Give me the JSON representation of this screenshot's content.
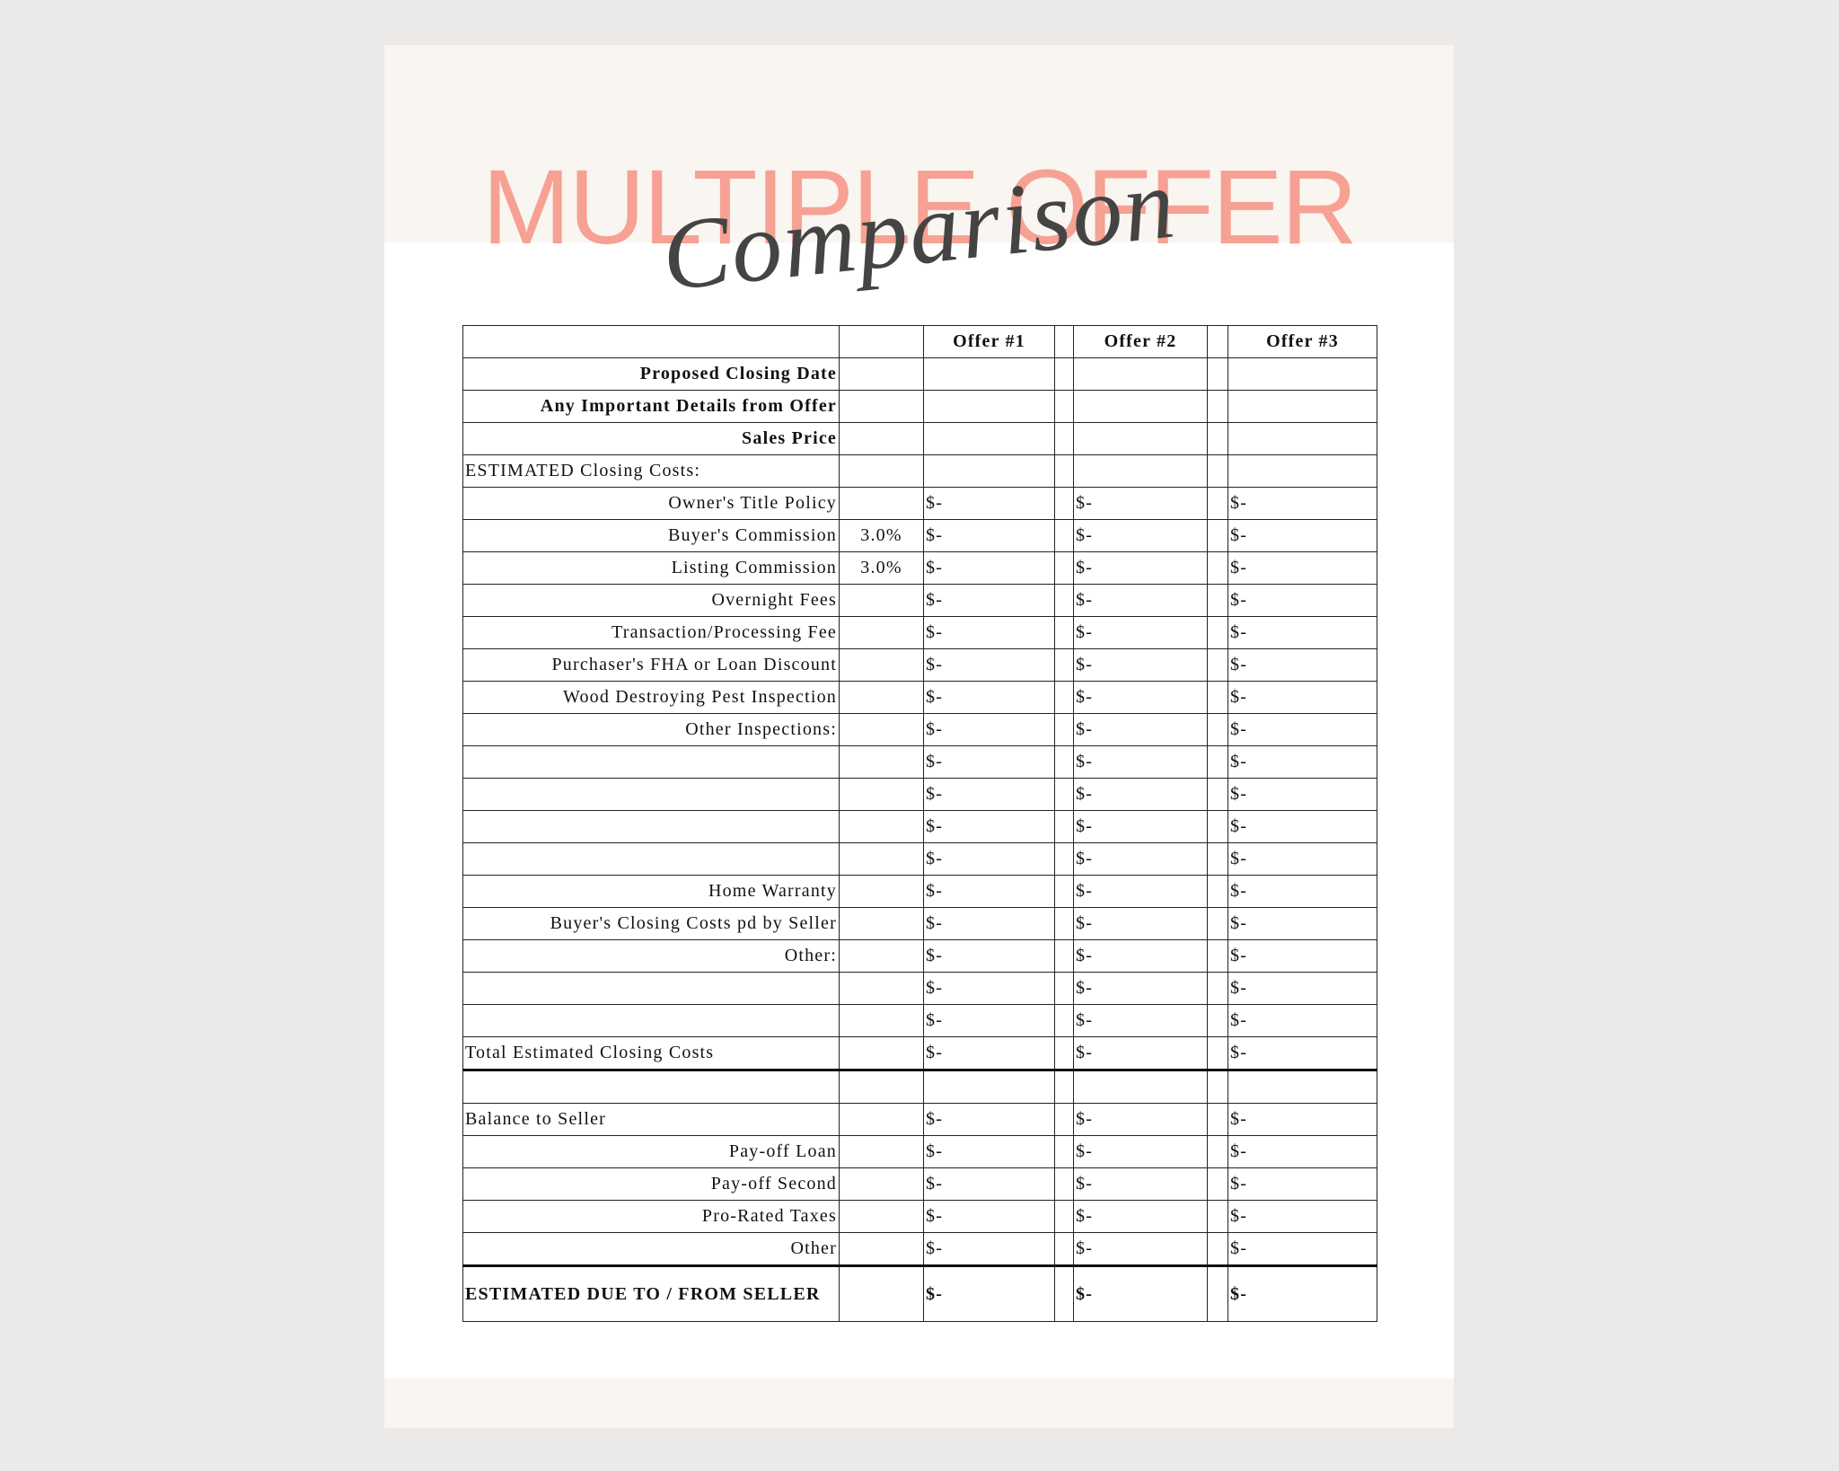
{
  "title": "MULTIPLE OFFER",
  "subtitle": "Comparison",
  "table": {
    "header": [
      "Offer #1",
      "Offer #2",
      "Offer #3"
    ],
    "rows": [
      {
        "label": "Proposed Closing Date"
      },
      {
        "label": "Any Important Details from Offer"
      },
      {
        "label": "Sales Price"
      },
      {
        "label": "ESTIMATED Closing Costs:"
      },
      {
        "label": "Owner's Title Policy",
        "offers": [
          "$-",
          "$-",
          "$-"
        ]
      },
      {
        "label": "Buyer's Commission",
        "rate": "3.0%",
        "offers": [
          "$-",
          "$-",
          "$-"
        ]
      },
      {
        "label": "Listing Commission",
        "rate": "3.0%",
        "offers": [
          "$-",
          "$-",
          "$-"
        ]
      },
      {
        "label": "Overnight Fees",
        "offers": [
          "$-",
          "$-",
          "$-"
        ]
      },
      {
        "label": "Transaction/Processing Fee",
        "offers": [
          "$-",
          "$-",
          "$-"
        ]
      },
      {
        "label": "Purchaser's FHA or Loan Discount",
        "offers": [
          "$-",
          "$-",
          "$-"
        ]
      },
      {
        "label": "Wood Destroying Pest Inspection",
        "offers": [
          "$-",
          "$-",
          "$-"
        ]
      },
      {
        "label": "Other Inspections:",
        "offers": [
          "$-",
          "$-",
          "$-"
        ]
      },
      {
        "offers": [
          "$-",
          "$-",
          "$-"
        ]
      },
      {
        "offers": [
          "$-",
          "$-",
          "$-"
        ]
      },
      {
        "offers": [
          "$-",
          "$-",
          "$-"
        ]
      },
      {
        "offers": [
          "$-",
          "$-",
          "$-"
        ]
      },
      {
        "label": "Home Warranty",
        "offers": [
          "$-",
          "$-",
          "$-"
        ]
      },
      {
        "label": "Buyer's Closing Costs pd by Seller",
        "offers": [
          "$-",
          "$-",
          "$-"
        ]
      },
      {
        "label": "Other:",
        "offers": [
          "$-",
          "$-",
          "$-"
        ]
      },
      {
        "offers": [
          "$-",
          "$-",
          "$-"
        ]
      },
      {
        "offers": [
          "$-",
          "$-",
          "$-"
        ]
      },
      {
        "label": "Total Estimated Closing Costs",
        "offers": [
          "$-",
          "$-",
          "$-"
        ]
      },
      {},
      {
        "label": "Balance to Seller",
        "offers": [
          "$-",
          "$-",
          "$-"
        ]
      },
      {
        "label": "Pay-off Loan",
        "offers": [
          "$-",
          "$-",
          "$-"
        ]
      },
      {
        "label": "Pay-off Second",
        "offers": [
          "$-",
          "$-",
          "$-"
        ]
      },
      {
        "label": "Pro-Rated Taxes",
        "offers": [
          "$-",
          "$-",
          "$-"
        ]
      },
      {
        "label": "Other",
        "offers": [
          "$-",
          "$-",
          "$-"
        ]
      },
      {
        "label": "ESTIMATED DUE TO / FROM SELLER",
        "offers": [
          "$-",
          "$-",
          "$-"
        ]
      }
    ]
  }
}
